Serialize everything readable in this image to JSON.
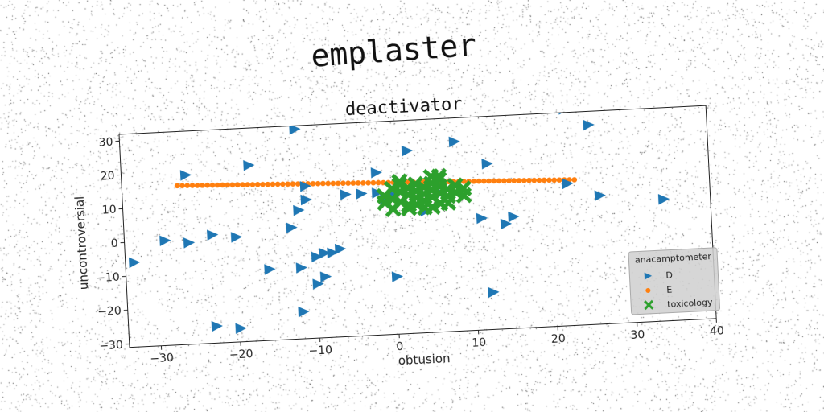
{
  "chart_data": {
    "type": "scatter",
    "suptitle": "emplaster",
    "title": "deactivator",
    "xlabel": "obtusion",
    "ylabel": "uncontroversial",
    "xlim": [
      -34,
      40
    ],
    "ylim": [
      -31,
      32
    ],
    "xticks": [
      -30,
      -20,
      -10,
      0,
      10,
      20,
      30,
      40
    ],
    "xtick_labels": [
      "−30",
      "−20",
      "−10",
      "0",
      "10",
      "20",
      "30",
      "40"
    ],
    "yticks": [
      -30,
      -20,
      -10,
      0,
      10,
      20,
      30
    ],
    "ytick_labels": [
      "−30",
      "−20",
      "−10",
      "0",
      "10",
      "20",
      "30"
    ],
    "grid": false,
    "legend": {
      "title": "anacamptometer",
      "placement": "lower right"
    },
    "series": [
      {
        "name": "D",
        "marker": "triangle-right",
        "color": "#1f77b4",
        "points": [
          [
            -12,
            31
          ],
          [
            14,
            35
          ],
          [
            -4,
            11
          ],
          [
            -26,
            19
          ],
          [
            -18,
            21
          ],
          [
            -2,
            17
          ],
          [
            2,
            23
          ],
          [
            8,
            25
          ],
          [
            12,
            18
          ],
          [
            22,
            33
          ],
          [
            25,
            28
          ],
          [
            -11,
            14
          ],
          [
            -11,
            10
          ],
          [
            -12,
            7
          ],
          [
            -13,
            2
          ],
          [
            -16,
            -10
          ],
          [
            -12,
            -10
          ],
          [
            -10,
            -7
          ],
          [
            -9,
            -6
          ],
          [
            -8,
            -6
          ],
          [
            -7,
            -5
          ],
          [
            -10,
            -15
          ],
          [
            -9,
            -13
          ],
          [
            -33,
            -6
          ],
          [
            -29,
            0
          ],
          [
            -26,
            -1
          ],
          [
            -23,
            1
          ],
          [
            -20,
            0
          ],
          [
            -12,
            -23
          ],
          [
            0,
            -14
          ],
          [
            11,
            2
          ],
          [
            12,
            -20
          ],
          [
            14,
            0
          ],
          [
            15,
            2
          ],
          [
            22,
            11
          ],
          [
            26,
            7
          ],
          [
            34,
            5
          ],
          [
            -23,
            -26
          ],
          [
            -20,
            -27
          ],
          [
            -6,
            11
          ],
          [
            -2,
            11
          ],
          [
            0,
            10
          ],
          [
            -1,
            9
          ],
          [
            4,
            5
          ],
          [
            6,
            10
          ]
        ]
      },
      {
        "name": "E",
        "marker": "circle",
        "color": "#ff7f0e",
        "x_start": -27,
        "x_end": 23,
        "y_start": 16,
        "y_end": 12,
        "count": 80
      },
      {
        "name": "toxicology",
        "marker": "x-filled",
        "color": "#2ca02c",
        "points": [
          [
            -1,
            10
          ],
          [
            0,
            12
          ],
          [
            0,
            9
          ],
          [
            1,
            11
          ],
          [
            1,
            13
          ],
          [
            1,
            8
          ],
          [
            2,
            10
          ],
          [
            2,
            12
          ],
          [
            3,
            9
          ],
          [
            3,
            11
          ],
          [
            3,
            13
          ],
          [
            2,
            7
          ],
          [
            4,
            10
          ],
          [
            4,
            12
          ],
          [
            4,
            8
          ],
          [
            5,
            11
          ],
          [
            5,
            13
          ],
          [
            5,
            9
          ],
          [
            6,
            12
          ],
          [
            6,
            10
          ],
          [
            6,
            14
          ],
          [
            7,
            11
          ],
          [
            7,
            9
          ],
          [
            8,
            12
          ],
          [
            8,
            10
          ],
          [
            9,
            11
          ],
          [
            9,
            9
          ],
          [
            4,
            6
          ],
          [
            5,
            6
          ],
          [
            6,
            7
          ],
          [
            7,
            7
          ],
          [
            2,
            6
          ],
          [
            3,
            7
          ],
          [
            0,
            6
          ],
          [
            1,
            14
          ],
          [
            5,
            15
          ],
          [
            6,
            15
          ],
          [
            -1,
            8
          ]
        ]
      }
    ]
  }
}
